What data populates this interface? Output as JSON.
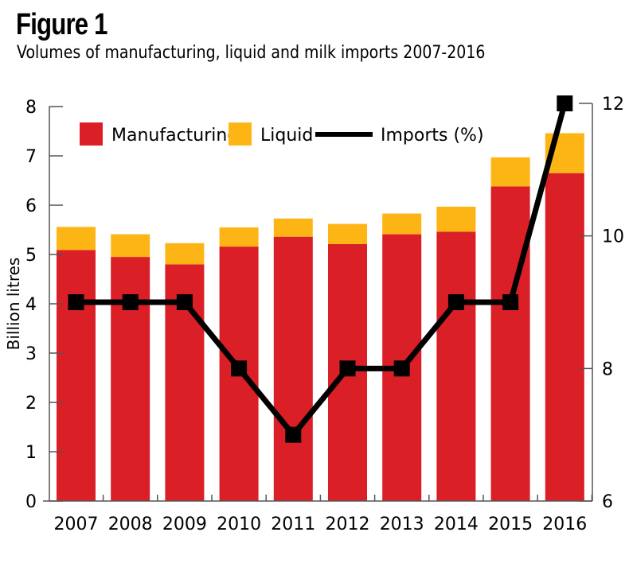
{
  "figure": {
    "label": "Figure 1",
    "subtitle": "Volumes of manufacturing, liquid and milk imports 2007-2016"
  },
  "colors": {
    "manufacturing": "#DA1F26",
    "liquid": "#FDB515",
    "imports": "#000000",
    "axis": "#555555"
  },
  "chart_data": {
    "type": "bar",
    "stacked": true,
    "title": "Volumes of manufacturing, liquid and milk imports 2007-2016",
    "categories": [
      "2007",
      "2008",
      "2009",
      "2010",
      "2011",
      "2012",
      "2013",
      "2014",
      "2015",
      "2016"
    ],
    "series": [
      {
        "name": "Manufacturing",
        "type": "bar",
        "axis": "left",
        "values": [
          5.09,
          4.95,
          4.8,
          5.16,
          5.36,
          5.21,
          5.41,
          5.46,
          6.38,
          6.65
        ]
      },
      {
        "name": "Liquid",
        "type": "bar",
        "axis": "left",
        "values": [
          0.47,
          0.46,
          0.43,
          0.39,
          0.37,
          0.41,
          0.42,
          0.51,
          0.59,
          0.81
        ]
      },
      {
        "name": "Imports (%)",
        "type": "line",
        "axis": "right",
        "values": [
          9,
          9,
          9,
          8,
          7,
          8,
          8,
          9,
          9,
          12
        ]
      }
    ],
    "xlabel": "",
    "ylabel": "Billion litres",
    "ylabel_right": "",
    "ylim": [
      0,
      8
    ],
    "ylim_right": [
      6,
      12
    ],
    "yticks": [
      "0",
      "1",
      "2",
      "3",
      "4",
      "5",
      "6",
      "7",
      "8"
    ],
    "yticks_right": [
      "6",
      "8",
      "10",
      "12"
    ],
    "grid": false,
    "legend": [
      "Manufacturing",
      "Liquid",
      "Imports (%)"
    ],
    "legend_position": "top-left"
  }
}
